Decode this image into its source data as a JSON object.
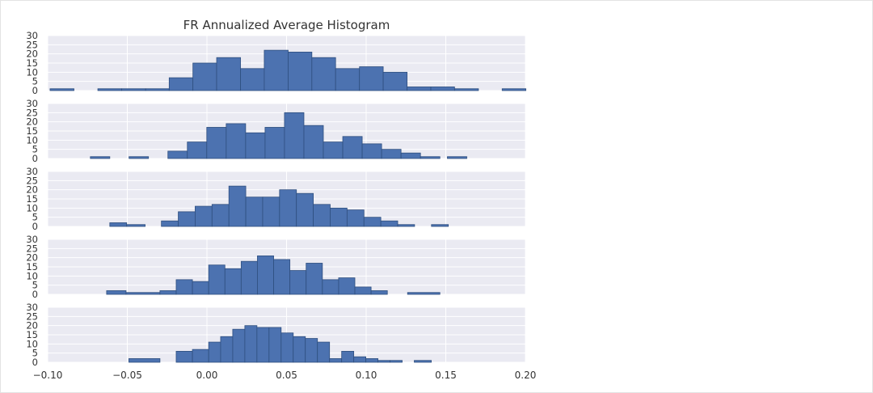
{
  "chart_data": {
    "type": "bar",
    "title": "FR Annualized Average Histogram",
    "xlim": [
      -0.1,
      0.2
    ],
    "x_ticks": [
      "−0.10",
      "−0.05",
      "0.00",
      "0.05",
      "0.10",
      "0.15",
      "0.20"
    ],
    "x_tick_values": [
      -0.1,
      -0.05,
      0.0,
      0.05,
      0.1,
      0.15,
      0.2
    ],
    "ylim": [
      0,
      30
    ],
    "y_ticks": [
      "30",
      "25",
      "20",
      "15",
      "10",
      "5",
      "0"
    ],
    "y_tick_values": [
      30,
      25,
      20,
      15,
      10,
      5,
      0
    ],
    "grid": true,
    "bar_color": "#4c72b0",
    "panel_background": "#eaeaf2",
    "series": [
      {
        "bins": [
          [
            -0.0985,
            -0.0835,
            1
          ],
          [
            -0.0685,
            -0.0535,
            1
          ],
          [
            -0.0535,
            -0.0385,
            1
          ],
          [
            -0.0385,
            -0.0237,
            1
          ],
          [
            -0.0237,
            -0.0088,
            7
          ],
          [
            -0.0088,
            0.0061,
            15
          ],
          [
            0.0061,
            0.0211,
            18
          ],
          [
            0.0211,
            0.036,
            12
          ],
          [
            0.036,
            0.051,
            22
          ],
          [
            0.051,
            0.0659,
            21
          ],
          [
            0.0659,
            0.0808,
            18
          ],
          [
            0.0808,
            0.0958,
            12
          ],
          [
            0.0958,
            0.1107,
            13
          ],
          [
            0.1107,
            0.1257,
            10
          ],
          [
            0.1257,
            0.1406,
            2
          ],
          [
            0.1406,
            0.1555,
            2
          ],
          [
            0.1555,
            0.1705,
            1
          ],
          [
            0.1854,
            0.2003,
            1
          ]
        ]
      },
      {
        "bins": [
          [
            -0.0732,
            -0.061,
            1
          ],
          [
            -0.0489,
            -0.0367,
            1
          ],
          [
            -0.0245,
            -0.0123,
            4
          ],
          [
            -0.0123,
            -0.0001,
            9
          ],
          [
            -0.0001,
            0.0121,
            17
          ],
          [
            0.0121,
            0.0243,
            19
          ],
          [
            0.0243,
            0.0365,
            14
          ],
          [
            0.0365,
            0.0487,
            17
          ],
          [
            0.0487,
            0.0609,
            25
          ],
          [
            0.0609,
            0.0731,
            18
          ],
          [
            0.0731,
            0.0853,
            9
          ],
          [
            0.0853,
            0.0975,
            12
          ],
          [
            0.0975,
            0.1097,
            8
          ],
          [
            0.1097,
            0.1219,
            5
          ],
          [
            0.1219,
            0.1341,
            3
          ],
          [
            0.1341,
            0.1463,
            1
          ],
          [
            0.151,
            0.1632,
            1
          ]
        ]
      },
      {
        "bins": [
          [
            -0.061,
            -0.0504,
            2
          ],
          [
            -0.0504,
            -0.0388,
            1
          ],
          [
            -0.0286,
            -0.018,
            3
          ],
          [
            -0.018,
            -0.0074,
            8
          ],
          [
            -0.0074,
            0.0032,
            11
          ],
          [
            0.0032,
            0.0138,
            12
          ],
          [
            0.0138,
            0.0244,
            22
          ],
          [
            0.0244,
            0.035,
            16
          ],
          [
            0.035,
            0.0456,
            16
          ],
          [
            0.0456,
            0.0562,
            20
          ],
          [
            0.0562,
            0.0668,
            18
          ],
          [
            0.0668,
            0.0774,
            12
          ],
          [
            0.0774,
            0.088,
            10
          ],
          [
            0.088,
            0.0986,
            9
          ],
          [
            0.0986,
            0.1092,
            5
          ],
          [
            0.1092,
            0.1198,
            3
          ],
          [
            0.1198,
            0.1304,
            1
          ],
          [
            0.141,
            0.1516,
            1
          ]
        ]
      },
      {
        "bins": [
          [
            -0.063,
            -0.0508,
            2
          ],
          [
            -0.0508,
            -0.0295,
            1
          ],
          [
            -0.0295,
            -0.0193,
            2
          ],
          [
            -0.0193,
            -0.0091,
            8
          ],
          [
            -0.0091,
            0.0011,
            7
          ],
          [
            0.0011,
            0.0113,
            16
          ],
          [
            0.0113,
            0.0215,
            14
          ],
          [
            0.0215,
            0.0317,
            18
          ],
          [
            0.0317,
            0.0419,
            21
          ],
          [
            0.0419,
            0.0521,
            19
          ],
          [
            0.0521,
            0.0623,
            13
          ],
          [
            0.0623,
            0.0725,
            17
          ],
          [
            0.0725,
            0.0827,
            8
          ],
          [
            0.0827,
            0.0929,
            9
          ],
          [
            0.0929,
            0.1031,
            4
          ],
          [
            0.1031,
            0.1133,
            2
          ],
          [
            0.126,
            0.1463,
            1
          ]
        ]
      },
      {
        "bins": [
          [
            -0.049,
            -0.0295,
            2
          ],
          [
            -0.0193,
            -0.0091,
            6
          ],
          [
            -0.0091,
            0.0011,
            7
          ],
          [
            0.0011,
            0.0086,
            11
          ],
          [
            0.0086,
            0.0162,
            14
          ],
          [
            0.0162,
            0.0238,
            18
          ],
          [
            0.0238,
            0.0314,
            20
          ],
          [
            0.0314,
            0.039,
            19
          ],
          [
            0.039,
            0.0466,
            19
          ],
          [
            0.0466,
            0.0542,
            16
          ],
          [
            0.0542,
            0.0618,
            14
          ],
          [
            0.0618,
            0.0694,
            13
          ],
          [
            0.0694,
            0.077,
            11
          ],
          [
            0.077,
            0.0846,
            2
          ],
          [
            0.0846,
            0.0922,
            6
          ],
          [
            0.0922,
            0.0998,
            3
          ],
          [
            0.0998,
            0.1074,
            2
          ],
          [
            0.1074,
            0.115,
            1
          ],
          [
            0.115,
            0.1226,
            1
          ],
          [
            0.1302,
            0.1409,
            1
          ]
        ]
      }
    ]
  }
}
